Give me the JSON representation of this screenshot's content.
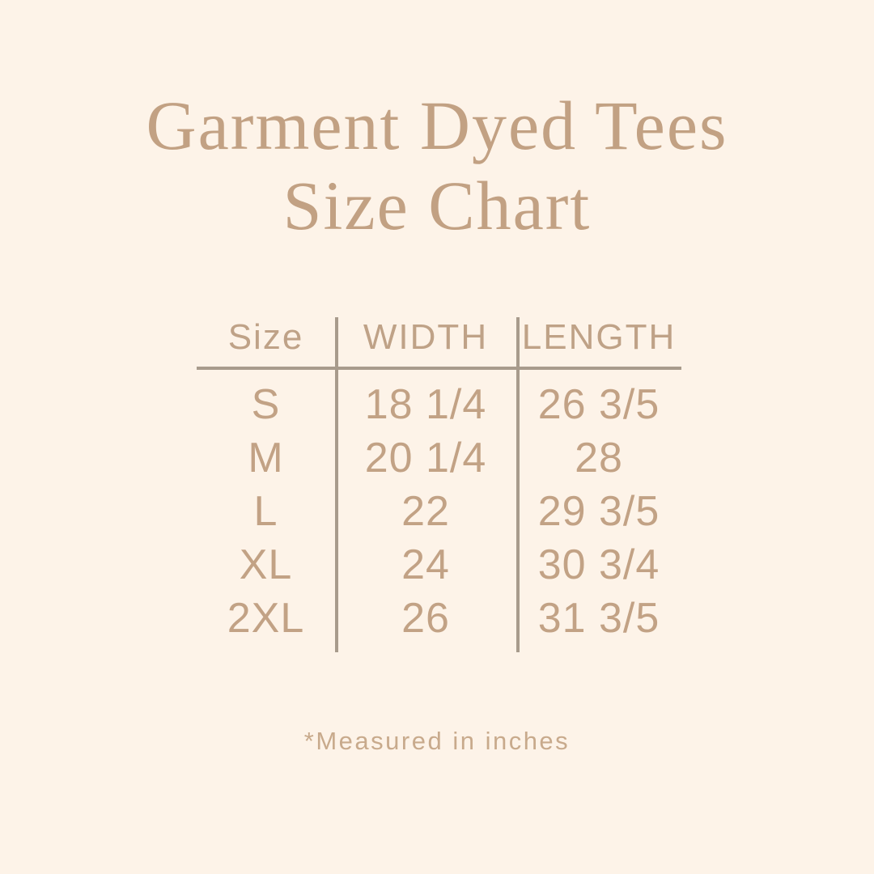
{
  "page": {
    "background_color": "#fdf3e8",
    "title_color": "#c2a183",
    "table_text_color": "#c2a285",
    "line_color": "#a89b8c"
  },
  "title": {
    "line1": "Garment Dyed Tees",
    "line2": "Size Chart"
  },
  "table": {
    "headers": [
      "Size",
      "WIDTH",
      "LENGTH"
    ],
    "rows": [
      {
        "size": "S",
        "width": "18 1/4",
        "length": "26 3/5"
      },
      {
        "size": "M",
        "width": "20 1/4",
        "length": "28"
      },
      {
        "size": "L",
        "width": "22",
        "length": "29 3/5"
      },
      {
        "size": "XL",
        "width": "24",
        "length": "30 3/4"
      },
      {
        "size": "2XL",
        "width": "26",
        "length": "31 3/5"
      }
    ]
  },
  "footnote": "*Measured in inches"
}
